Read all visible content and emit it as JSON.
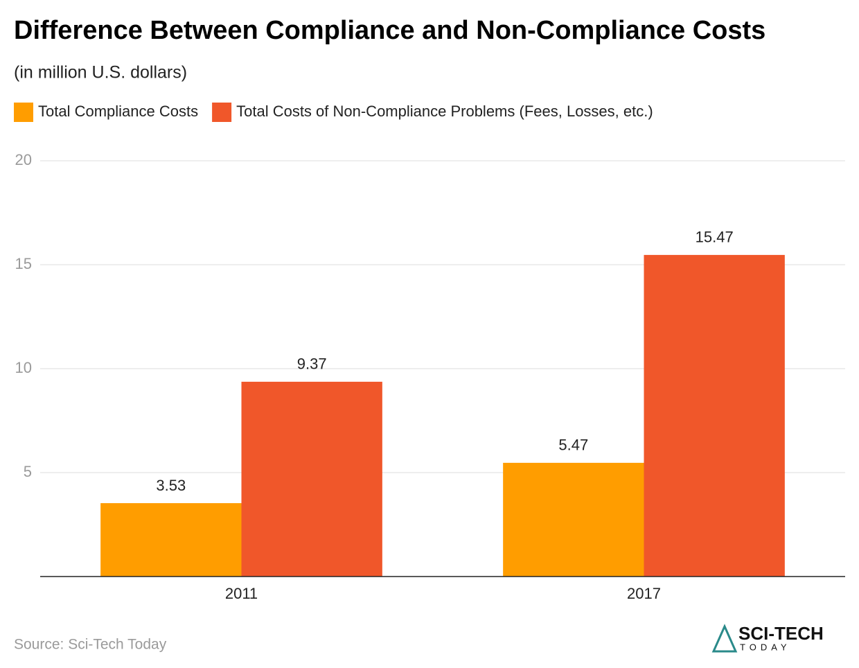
{
  "chart_data": {
    "type": "bar",
    "title": "Difference Between Compliance and Non-Compliance Costs",
    "subtitle": "(in million U.S. dollars)",
    "categories": [
      "2011",
      "2017"
    ],
    "series": [
      {
        "name": "Total Compliance Costs",
        "color": "#ff9d00",
        "values": [
          3.53,
          5.47
        ]
      },
      {
        "name": "Total Costs of Non-Compliance Problems (Fees, Losses, etc.)",
        "color": "#f0572a",
        "values": [
          9.37,
          15.47
        ]
      }
    ],
    "ylim": [
      0,
      20
    ],
    "yticks": [
      5,
      10,
      15,
      20
    ],
    "grid": true,
    "legend": "top",
    "source": "Source: Sci-Tech Today",
    "logo": {
      "name": "SCI-TECH",
      "tagline": "TODAY"
    }
  }
}
